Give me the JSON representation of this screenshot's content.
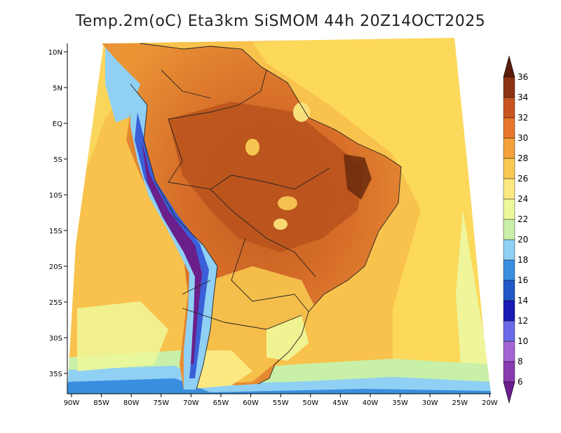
{
  "title": "Temp.2m(oC) Eta3km SiSMOM 44h 20Z14OCT2025",
  "lat_labels": [
    "10N",
    "5N",
    "EQ",
    "5S",
    "10S",
    "15S",
    "20S",
    "25S",
    "30S",
    "35S"
  ],
  "lon_labels": [
    "90W",
    "85W",
    "80W",
    "75W",
    "70W",
    "65W",
    "60W",
    "55W",
    "50W",
    "45W",
    "40W",
    "35W",
    "30W",
    "25W",
    "20W"
  ],
  "colorbar": {
    "labels": [
      "6",
      "8",
      "10",
      "12",
      "14",
      "16",
      "18",
      "20",
      "22",
      "24",
      "26",
      "28",
      "30",
      "32",
      "34",
      "36"
    ],
    "colors": [
      "#6b1e8f",
      "#8a3ab0",
      "#a463d4",
      "#6a6ae8",
      "#1a1ab4",
      "#2158c8",
      "#3a8ee0",
      "#8fd0f4",
      "#c8f0a8",
      "#eef89a",
      "#fce880",
      "#f8c850",
      "#f4a03c",
      "#e8782c",
      "#c85420",
      "#8c3212",
      "#5a1c08"
    ]
  },
  "colors": {
    "ocean_far": "#fcd659",
    "ocean_mid": "#f6b545",
    "land_hot": "#e07a2c",
    "land_very_hot": "#b9521c",
    "andes_cold": "#3b4fd0",
    "andes_coldest": "#6a1f8a",
    "southern_cool": "#a9dcef"
  }
}
